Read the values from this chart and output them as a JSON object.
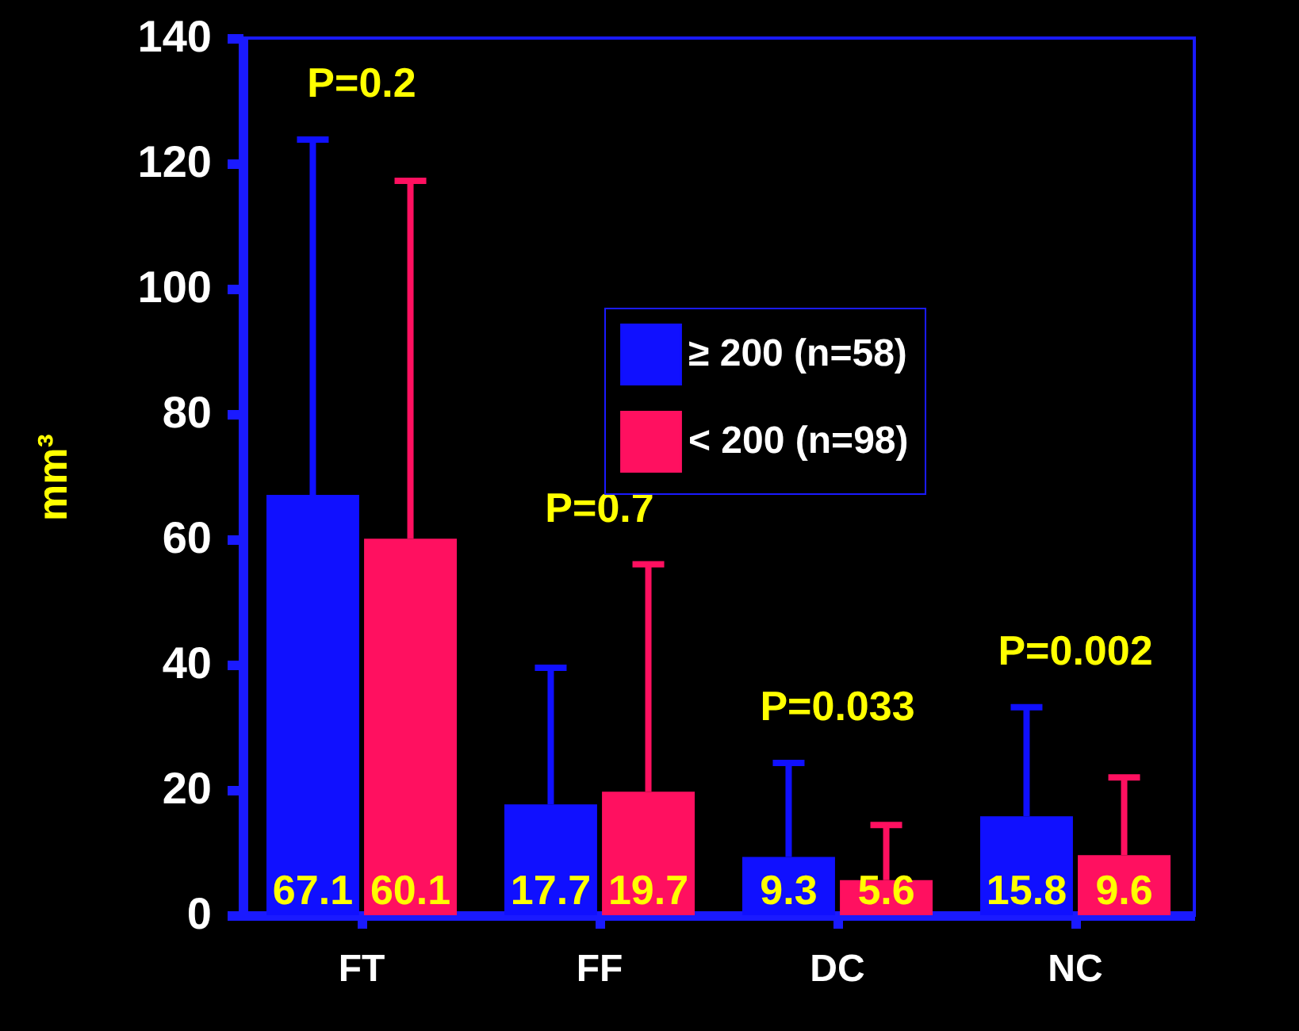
{
  "chart_data": {
    "type": "bar",
    "ylabel": "mm³",
    "categories": [
      "FT",
      "FF",
      "DC",
      "NC"
    ],
    "series": [
      {
        "name": "≥ 200 (n=58)",
        "color": "#1010ff",
        "values": [
          67.1,
          17.7,
          9.3,
          15.8
        ],
        "errors": [
          [
            67.1,
            123.8
          ],
          [
            17.7,
            39.5
          ],
          [
            9.3,
            24.3
          ],
          [
            15.8,
            33.2
          ]
        ]
      },
      {
        "name": "< 200 (n=98)",
        "color": "#ff1060",
        "values": [
          60.1,
          19.7,
          5.6,
          9.6
        ],
        "errors": [
          [
            60.1,
            117.2
          ],
          [
            19.7,
            56
          ],
          [
            5.6,
            14.4
          ],
          [
            9.6,
            22
          ]
        ]
      }
    ],
    "ylim": [
      0,
      140
    ],
    "yticks": [
      0,
      20,
      40,
      60,
      80,
      100,
      120,
      140
    ],
    "data_labels": true,
    "legend": "top right",
    "grid": false,
    "annotations": [
      "P=0.2",
      "P=0.7",
      "P=0.033",
      "P=0.002"
    ]
  }
}
